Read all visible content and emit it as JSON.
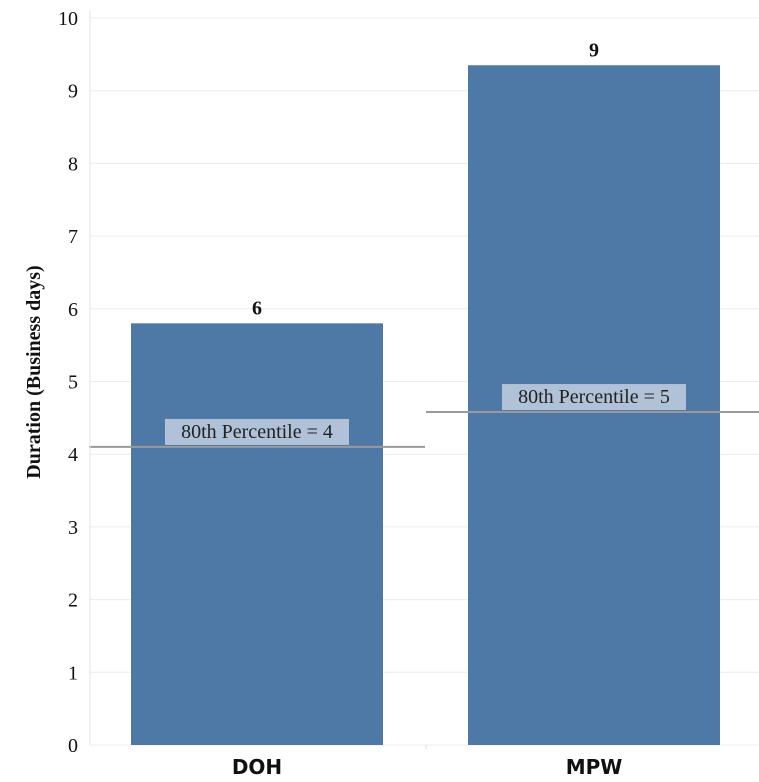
{
  "chart_data": {
    "type": "bar",
    "categories": [
      "DOH",
      "MPW"
    ],
    "values": [
      5.8,
      9.35
    ],
    "data_labels": [
      "6",
      "9"
    ],
    "ylabel": "Duration (Business days)",
    "ylim": [
      0,
      10
    ],
    "yticks": [
      0,
      1,
      2,
      3,
      4,
      5,
      6,
      7,
      8,
      9,
      10
    ],
    "grid": true,
    "bar_color": "#4e79a7",
    "reference_lines": [
      {
        "category": "DOH",
        "value": 4.1,
        "label": "80th Percentile = 4"
      },
      {
        "category": "MPW",
        "value": 4.58,
        "label": "80th Percentile = 5"
      }
    ]
  }
}
